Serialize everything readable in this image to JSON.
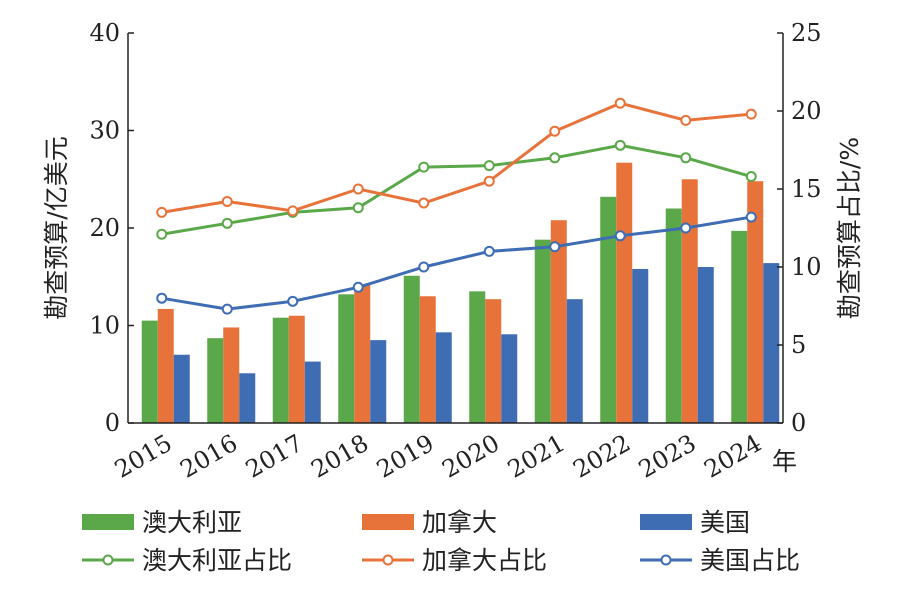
{
  "chart_data": {
    "type": "bar",
    "categories": [
      "2015",
      "2016",
      "2017",
      "2018",
      "2019",
      "2020",
      "2021",
      "2022",
      "2023",
      "2024"
    ],
    "xlabel": "年",
    "ylabel": "勘查预算/亿美元",
    "y2label": "勘查预算占比/%",
    "ylim": [
      0,
      40
    ],
    "y2lim": [
      0,
      25
    ],
    "yticks": [
      "0",
      "10",
      "20",
      "30",
      "40"
    ],
    "y2ticks": [
      "0",
      "5",
      "10",
      "15",
      "20",
      "25"
    ],
    "grid": false,
    "legend_position": "bottom",
    "bar_series": [
      {
        "name": "澳大利亚",
        "color": "#5aa84a",
        "values": [
          10.5,
          8.7,
          10.8,
          13.2,
          15.1,
          13.5,
          18.8,
          23.2,
          22.0,
          19.7
        ]
      },
      {
        "name": "加拿大",
        "color": "#e8733a",
        "values": [
          11.7,
          9.8,
          11.0,
          14.2,
          13.0,
          12.7,
          20.8,
          26.7,
          25.0,
          24.8
        ]
      },
      {
        "name": "美国",
        "color": "#3f6db3",
        "values": [
          7.0,
          5.1,
          6.3,
          8.5,
          9.3,
          9.1,
          12.7,
          15.8,
          16.0,
          16.4
        ]
      }
    ],
    "line_series": [
      {
        "name": "澳大利亚占比",
        "color": "#5aa84a",
        "values": [
          12.1,
          12.8,
          13.5,
          13.8,
          16.4,
          16.5,
          17.0,
          17.8,
          17.0,
          15.8
        ]
      },
      {
        "name": "加拿大占比",
        "color": "#e8733a",
        "values": [
          13.5,
          14.2,
          13.6,
          15.0,
          14.1,
          15.5,
          18.7,
          20.5,
          19.4,
          19.8
        ]
      },
      {
        "name": "美国占比",
        "color": "#3f6db3",
        "values": [
          8.0,
          7.3,
          7.8,
          8.7,
          10.0,
          11.0,
          11.3,
          12.0,
          12.5,
          13.2
        ]
      }
    ]
  }
}
